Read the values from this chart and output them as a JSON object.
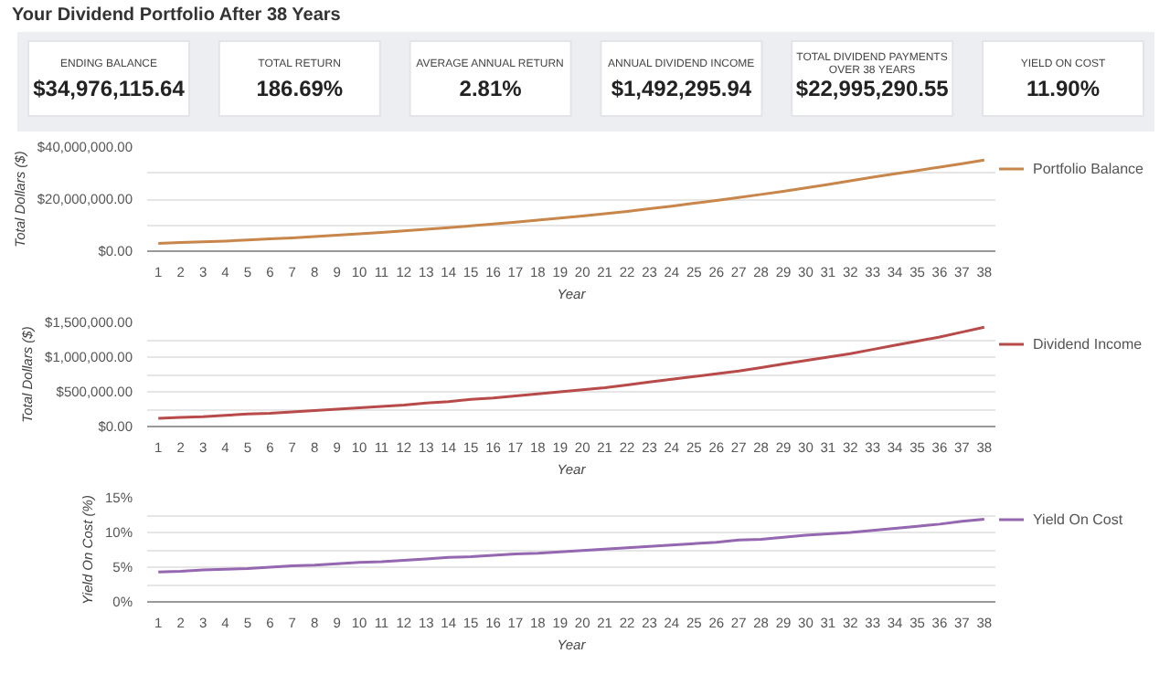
{
  "chart_data": [
    {
      "type": "other",
      "title": "Your Dividend Portfolio After 38 Years",
      "annotations": [
        "ENDING BALANCE",
        "$34,976,115.64",
        "TOTAL RETURN",
        "186.69%",
        "AVERAGE ANNUAL RETURN",
        "2.81%",
        "ANNUAL DIVIDEND INCOME",
        "$1,492,295.94",
        "TOTAL DIVIDEND PAYMENTS OVER 38 YEARS",
        "$22,995,290.55",
        "YIELD ON COST",
        "11.90%"
      ]
    },
    {
      "type": "line",
      "xlabel": "Year",
      "ylabel": "Total Dollars ($)",
      "x": [
        1,
        2,
        3,
        4,
        5,
        6,
        7,
        8,
        9,
        10,
        11,
        12,
        13,
        14,
        15,
        16,
        17,
        18,
        19,
        20,
        21,
        22,
        23,
        24,
        25,
        26,
        27,
        28,
        29,
        30,
        31,
        32,
        33,
        34,
        35,
        36,
        37,
        38
      ],
      "xlim": [
        0.5,
        38.5
      ],
      "xticks": [
        1,
        2,
        3,
        4,
        5,
        6,
        7,
        8,
        9,
        10,
        11,
        12,
        13,
        14,
        15,
        16,
        17,
        18,
        19,
        20,
        21,
        22,
        23,
        24,
        25,
        26,
        27,
        28,
        29,
        30,
        31,
        32,
        33,
        34,
        35,
        36,
        37,
        38
      ],
      "ylim": [
        0,
        40000000
      ],
      "yticks": [
        {
          "value": 0,
          "label": "$0.00"
        },
        {
          "value": 10000000,
          "label": null
        },
        {
          "value": 20000000,
          "label": "$20,000,000.00"
        },
        {
          "value": 30000000,
          "label": null
        },
        {
          "value": 40000000,
          "label": "$40,000,000.00"
        }
      ],
      "grid": "y",
      "legend": "right",
      "series": [
        {
          "name": "Portfolio Balance",
          "color": "#c8864a",
          "values": [
            3000000,
            3300000,
            3600000,
            3900000,
            4300000,
            4700000,
            5100000,
            5600000,
            6100000,
            6700000,
            7200000,
            7800000,
            8400000,
            9000000,
            9700000,
            10400000,
            11100000,
            11900000,
            12700000,
            13500000,
            14400000,
            15300000,
            16300000,
            17300000,
            18400000,
            19500000,
            20600000,
            21800000,
            23000000,
            24300000,
            25600000,
            27000000,
            28400000,
            29700000,
            31000000,
            32300000,
            33600000,
            35000000
          ]
        }
      ]
    },
    {
      "type": "line",
      "xlabel": "Year",
      "ylabel": "Total Dollars ($)",
      "x": [
        1,
        2,
        3,
        4,
        5,
        6,
        7,
        8,
        9,
        10,
        11,
        12,
        13,
        14,
        15,
        16,
        17,
        18,
        19,
        20,
        21,
        22,
        23,
        24,
        25,
        26,
        27,
        28,
        29,
        30,
        31,
        32,
        33,
        34,
        35,
        36,
        37,
        38
      ],
      "xlim": [
        0.5,
        38.5
      ],
      "xticks": [
        1,
        2,
        3,
        4,
        5,
        6,
        7,
        8,
        9,
        10,
        11,
        12,
        13,
        14,
        15,
        16,
        17,
        18,
        19,
        20,
        21,
        22,
        23,
        24,
        25,
        26,
        27,
        28,
        29,
        30,
        31,
        32,
        33,
        34,
        35,
        36,
        37,
        38
      ],
      "ylim": [
        0,
        1500000
      ],
      "yticks": [
        {
          "value": 0,
          "label": "$0.00"
        },
        {
          "value": 250000,
          "label": null
        },
        {
          "value": 500000,
          "label": "$500,000.00"
        },
        {
          "value": 750000,
          "label": null
        },
        {
          "value": 1000000,
          "label": "$1,000,000.00"
        },
        {
          "value": 1250000,
          "label": null
        },
        {
          "value": 1500000,
          "label": "$1,500,000.00"
        }
      ],
      "grid": "y",
      "legend": "right",
      "series": [
        {
          "name": "Dividend Income",
          "color": "#b84a4a",
          "values": [
            120000,
            130000,
            140000,
            160000,
            180000,
            190000,
            210000,
            230000,
            250000,
            270000,
            290000,
            310000,
            340000,
            360000,
            390000,
            410000,
            440000,
            470000,
            500000,
            530000,
            560000,
            600000,
            640000,
            680000,
            720000,
            760000,
            800000,
            850000,
            900000,
            950000,
            1000000,
            1050000,
            1110000,
            1170000,
            1230000,
            1290000,
            1360000,
            1430000
          ]
        }
      ]
    },
    {
      "type": "line",
      "xlabel": "Year",
      "ylabel": "Yield On Cost (%)",
      "x": [
        1,
        2,
        3,
        4,
        5,
        6,
        7,
        8,
        9,
        10,
        11,
        12,
        13,
        14,
        15,
        16,
        17,
        18,
        19,
        20,
        21,
        22,
        23,
        24,
        25,
        26,
        27,
        28,
        29,
        30,
        31,
        32,
        33,
        34,
        35,
        36,
        37,
        38
      ],
      "xlim": [
        0.5,
        38.5
      ],
      "xticks": [
        1,
        2,
        3,
        4,
        5,
        6,
        7,
        8,
        9,
        10,
        11,
        12,
        13,
        14,
        15,
        16,
        17,
        18,
        19,
        20,
        21,
        22,
        23,
        24,
        25,
        26,
        27,
        28,
        29,
        30,
        31,
        32,
        33,
        34,
        35,
        36,
        37,
        38
      ],
      "ylim": [
        0,
        15
      ],
      "yticks": [
        {
          "value": 0,
          "label": "0%"
        },
        {
          "value": 2.5,
          "label": null
        },
        {
          "value": 5,
          "label": "5%"
        },
        {
          "value": 7.5,
          "label": null
        },
        {
          "value": 10,
          "label": "10%"
        },
        {
          "value": 12.5,
          "label": null
        },
        {
          "value": 15,
          "label": "15%"
        }
      ],
      "grid": "y",
      "legend": "right",
      "series": [
        {
          "name": "Yield On Cost",
          "color": "#9467b0",
          "values": [
            4.3,
            4.4,
            4.6,
            4.7,
            4.8,
            5.0,
            5.2,
            5.3,
            5.5,
            5.7,
            5.8,
            6.0,
            6.2,
            6.4,
            6.5,
            6.7,
            6.9,
            7.0,
            7.2,
            7.4,
            7.6,
            7.8,
            8.0,
            8.2,
            8.4,
            8.6,
            8.9,
            9.0,
            9.3,
            9.6,
            9.8,
            10.0,
            10.3,
            10.6,
            10.9,
            11.2,
            11.6,
            11.9
          ]
        }
      ]
    }
  ]
}
